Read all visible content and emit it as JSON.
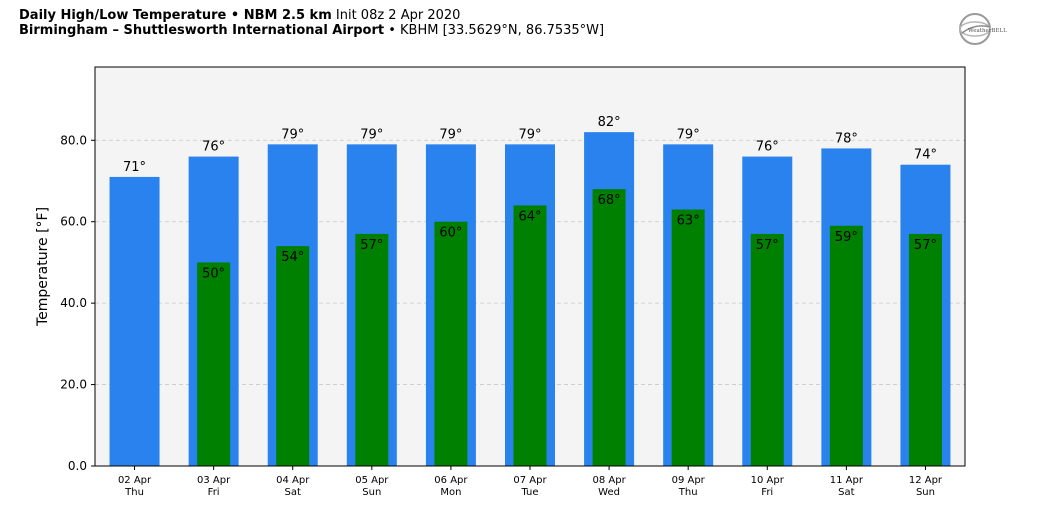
{
  "header": {
    "line1_bold": "Daily High/Low Temperature • NBM 2.5 km",
    "line1_normal": "Init 08z 2 Apr 2020",
    "line2_bold": "Birmingham – Shuttlesworth International Airport",
    "line2_normal": "• KBHM [33.5629°N, 86.7535°W]"
  },
  "logo": {
    "text": "WeatherBELL"
  },
  "colors": {
    "high": "#2a82ee",
    "low": "#008000",
    "plot_bg": "#f4f4f4"
  },
  "chart_data": {
    "type": "bar",
    "categories": [
      "02 Apr",
      "03 Apr",
      "04 Apr",
      "05 Apr",
      "06 Apr",
      "07 Apr",
      "08 Apr",
      "09 Apr",
      "10 Apr",
      "11 Apr",
      "12 Apr"
    ],
    "weekdays": [
      "Thu",
      "Fri",
      "Sat",
      "Sun",
      "Mon",
      "Tue",
      "Wed",
      "Thu",
      "Fri",
      "Sat",
      "Sun"
    ],
    "series": [
      {
        "values": [
          71,
          76,
          79,
          79,
          79,
          79,
          82,
          79,
          76,
          78,
          74
        ],
        "labels": [
          "71°",
          "76°",
          "79°",
          "79°",
          "79°",
          "79°",
          "82°",
          "79°",
          "76°",
          "78°",
          "74°"
        ]
      },
      {
        "values": [
          null,
          50,
          54,
          57,
          60,
          64,
          68,
          63,
          57,
          59,
          57
        ],
        "labels": [
          "",
          "50°",
          "54°",
          "57°",
          "60°",
          "64°",
          "68°",
          "63°",
          "57°",
          "59°",
          "57°"
        ]
      }
    ],
    "ylabel": "Temperature [°F]",
    "ylim": [
      0,
      98
    ],
    "yticks": [
      0,
      20,
      40,
      60,
      80
    ],
    "ytick_labels": [
      "0.0",
      "20.0",
      "40.0",
      "60.0",
      "80.0"
    ],
    "grid": true
  }
}
